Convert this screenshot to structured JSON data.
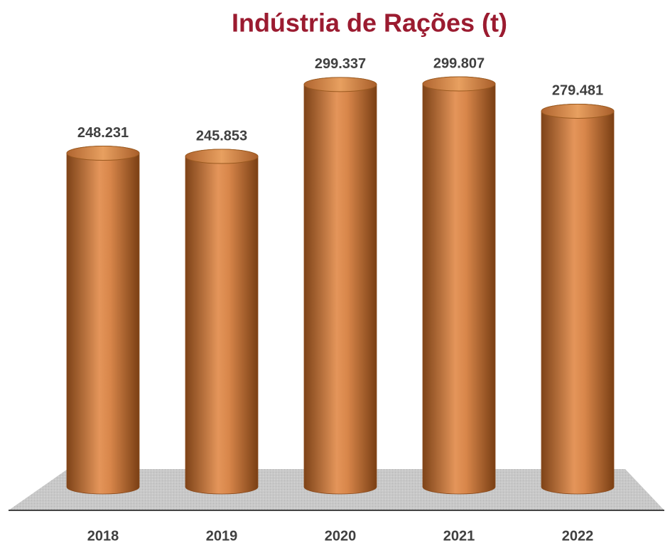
{
  "chart_data": {
    "type": "bar",
    "title": "Indústria de Rações (t)",
    "categories": [
      "2018",
      "2019",
      "2020",
      "2021",
      "2022"
    ],
    "values": [
      248231,
      245853,
      299337,
      299807,
      279481
    ],
    "value_labels": [
      "248.231",
      "245.853",
      "299.337",
      "299.807",
      "279.481"
    ],
    "color": "#c4733a"
  }
}
